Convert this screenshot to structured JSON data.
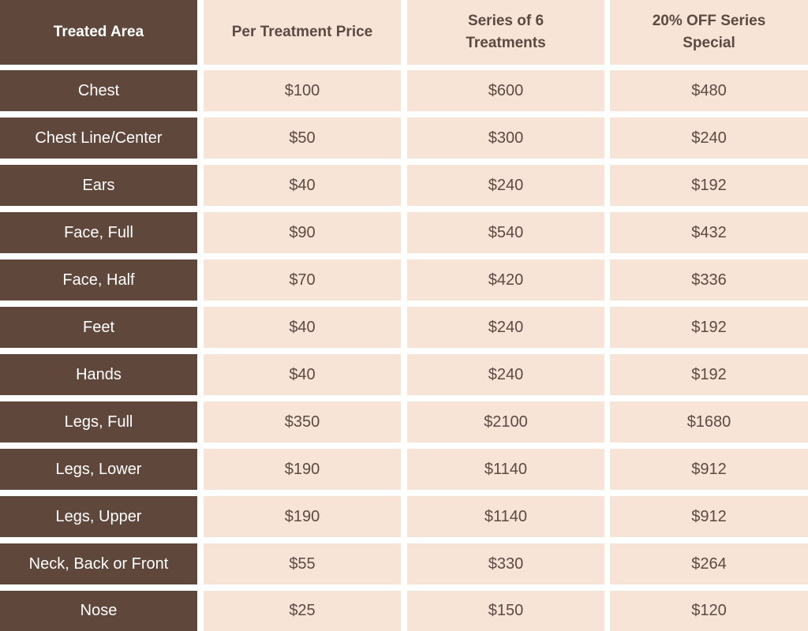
{
  "table": {
    "header": [
      "Treated Area",
      "Per Treatment Price",
      "Series of 6 Treatments",
      "20% OFF Series Special"
    ],
    "rows": [
      [
        "Chest",
        "$100",
        "$600",
        "$480"
      ],
      [
        "Chest Line/Center",
        "$50",
        "$300",
        "$240"
      ],
      [
        "Ears",
        "$40",
        "$240",
        "$192"
      ],
      [
        "Face, Full",
        "$90",
        "$540",
        "$432"
      ],
      [
        "Face, Half",
        "$70",
        "$420",
        "$336"
      ],
      [
        "Feet",
        "$40",
        "$240",
        "$192"
      ],
      [
        "Hands",
        "$40",
        "$240",
        "$192"
      ],
      [
        "Legs, Full",
        "$350",
        "$2100",
        "$1680"
      ],
      [
        "Legs, Lower",
        "$190",
        "$1140",
        "$912"
      ],
      [
        "Legs, Upper",
        "$190",
        "$1140",
        "$912"
      ],
      [
        "Neck, Back or Front",
        "$55",
        "$330",
        "$264"
      ],
      [
        "Nose",
        "$25",
        "$150",
        "$120"
      ]
    ]
  }
}
